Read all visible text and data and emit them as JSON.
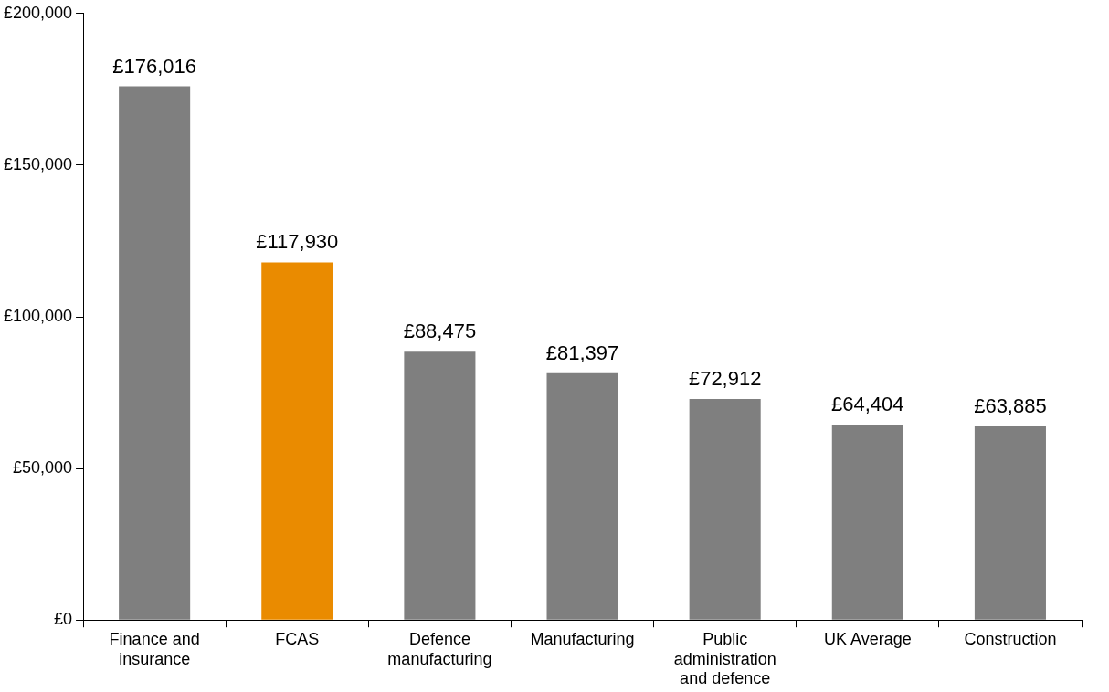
{
  "chart_data": {
    "type": "bar",
    "categories": [
      "Finance and insurance",
      "FCAS",
      "Defence manufacturing",
      "Manufacturing",
      "Public administration and defence",
      "UK Average",
      "Construction"
    ],
    "values": [
      176016,
      117930,
      88475,
      81397,
      72912,
      64404,
      63885
    ],
    "colors": [
      "#7f7f7f",
      "#ea8b00",
      "#7f7f7f",
      "#7f7f7f",
      "#7f7f7f",
      "#7f7f7f",
      "#7f7f7f"
    ],
    "value_labels": [
      "£176,016",
      "£117,930",
      "£88,475",
      "£81,397",
      "£72,912",
      "£64,404",
      "£63,885"
    ],
    "ylim": [
      0,
      200000
    ],
    "yticks": [
      {
        "value": 0,
        "label": "£0"
      },
      {
        "value": 50000,
        "label": "£50,000"
      },
      {
        "value": 100000,
        "label": "£100,000"
      },
      {
        "value": 150000,
        "label": "£150,000"
      },
      {
        "value": 200000,
        "label": "£200,000"
      }
    ],
    "grid": false,
    "legend": false
  }
}
